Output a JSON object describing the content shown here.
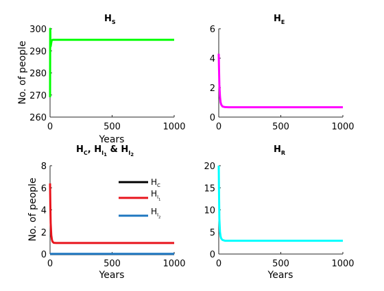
{
  "chart_data": [
    {
      "type": "line",
      "title": {
        "main": "H",
        "sub": "S"
      },
      "xlabel": "Years",
      "ylabel": "No. of people",
      "xlim": [
        0,
        1000
      ],
      "ylim": [
        260,
        300
      ],
      "xticks": [
        "0",
        "500",
        "1000"
      ],
      "yticks": [
        "260",
        "270",
        "280",
        "290",
        "300"
      ],
      "grid": false,
      "series": [
        {
          "name": "",
          "color": "#00ff00",
          "x": [
            0,
            1,
            2,
            3,
            5,
            8,
            12,
            20,
            40,
            100,
            300,
            1000
          ],
          "y": [
            269,
            300,
            299,
            294,
            292,
            293,
            294.5,
            295,
            295,
            295,
            295,
            295
          ]
        }
      ]
    },
    {
      "type": "line",
      "title": {
        "main": "H",
        "sub": "E"
      },
      "xlabel": "",
      "ylabel": "",
      "xlim": [
        0,
        1000
      ],
      "ylim": [
        0,
        6
      ],
      "xticks": [
        "0",
        "500",
        "1000"
      ],
      "yticks": [
        "0",
        "2",
        "4",
        "6"
      ],
      "grid": false,
      "series": [
        {
          "name": "",
          "color": "#ff00ff",
          "x": [
            0,
            2,
            5,
            10,
            15,
            20,
            30,
            50,
            80,
            150,
            400,
            1000
          ],
          "y": [
            4.3,
            3.3,
            2.2,
            1.4,
            1.0,
            0.85,
            0.72,
            0.68,
            0.67,
            0.67,
            0.67,
            0.67
          ]
        }
      ]
    },
    {
      "type": "line",
      "title": {
        "main": "H",
        "sub": "C",
        "main2": ", H",
        "sub2": "I",
        "subsub2": "1",
        "main3": " & H",
        "sub3": "I",
        "subsub3": "2"
      },
      "xlabel": "Years",
      "ylabel": "No. of people",
      "xlim": [
        0,
        1000
      ],
      "ylim": [
        0,
        8
      ],
      "xticks": [
        "0",
        "500",
        "1000"
      ],
      "yticks": [
        "0",
        "2",
        "4",
        "6",
        "8"
      ],
      "grid": false,
      "legend_position": "top-right",
      "series": [
        {
          "name": "H",
          "name_sub": "C",
          "name_subsub": "",
          "color": "#000000",
          "x": [
            0,
            1000
          ],
          "y": [
            0,
            0
          ]
        },
        {
          "name": "H",
          "name_sub": "I",
          "name_subsub": "1",
          "color": "#e8141c",
          "x": [
            0,
            2,
            5,
            10,
            15,
            20,
            30,
            50,
            100,
            300,
            1000
          ],
          "y": [
            6.4,
            4.5,
            2.8,
            1.7,
            1.3,
            1.12,
            1.02,
            1.0,
            1.0,
            1.0,
            1.0
          ]
        },
        {
          "name": "H",
          "name_sub": "I",
          "name_subsub": "2",
          "color": "#1f77c0",
          "x": [
            0,
            1000
          ],
          "y": [
            0.02,
            0.02
          ]
        }
      ]
    },
    {
      "type": "line",
      "title": {
        "main": "H",
        "sub": "R"
      },
      "xlabel": "Years",
      "ylabel": "",
      "xlim": [
        0,
        1000
      ],
      "ylim": [
        0,
        20
      ],
      "xticks": [
        "0",
        "500",
        "1000"
      ],
      "yticks": [
        "0",
        "5",
        "10",
        "15",
        "20"
      ],
      "grid": false,
      "series": [
        {
          "name": "",
          "color": "#00ffff",
          "x": [
            0,
            2,
            5,
            10,
            15,
            20,
            30,
            50,
            100,
            300,
            1000
          ],
          "y": [
            20,
            14,
            8,
            5,
            4,
            3.5,
            3.2,
            3.0,
            3.0,
            3.0,
            3.0
          ]
        }
      ]
    }
  ]
}
